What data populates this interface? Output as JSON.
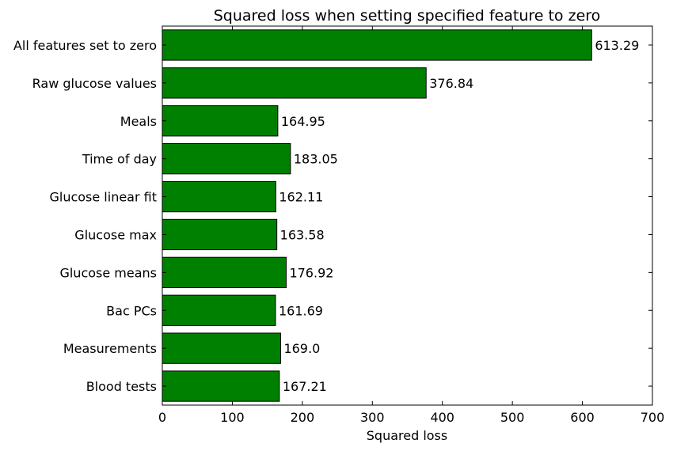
{
  "chart_data": {
    "type": "bar",
    "orientation": "horizontal",
    "title": "Squared loss when setting specified feature to zero",
    "xlabel": "Squared loss",
    "ylabel": "",
    "categories": [
      "All features set to zero",
      "Raw glucose values",
      "Meals",
      "Time of day",
      "Glucose linear fit",
      "Glucose max",
      "Glucose means",
      "Bac PCs",
      "Measurements",
      "Blood tests"
    ],
    "values": [
      613.29,
      376.84,
      164.95,
      183.05,
      162.11,
      163.58,
      176.92,
      161.69,
      169.0,
      167.21
    ],
    "data_labels": [
      "613.29",
      "376.84",
      "164.95",
      "183.05",
      "162.11",
      "163.58",
      "176.92",
      "161.69",
      "169.0",
      "167.21"
    ],
    "xlim": [
      0,
      700
    ],
    "xticks": [
      0,
      100,
      200,
      300,
      400,
      500,
      600,
      700
    ],
    "grid": false,
    "bar_color": "#008000",
    "edge_color": "#000000"
  }
}
